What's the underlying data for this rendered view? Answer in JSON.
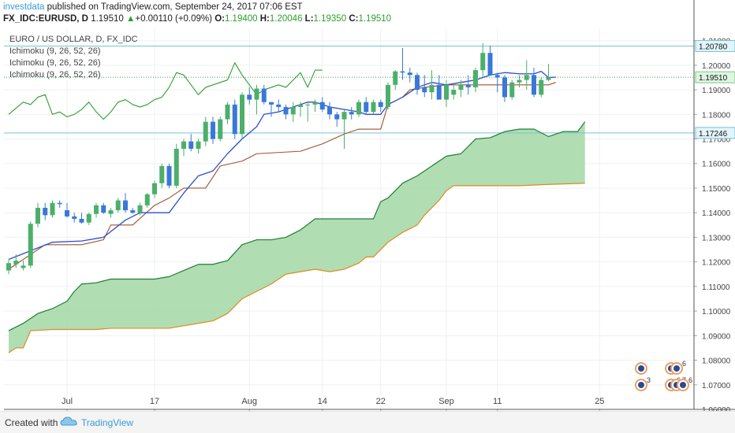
{
  "header": {
    "user": "investdata",
    "published": "published on TradingView.com, September 24, 2017 07:06 EST",
    "symbol": "FX_IDC:EURUSD, D",
    "price": "1.19510",
    "change_arrow": "▲",
    "change": "+0.00110 (+0.09%)",
    "o_label": "O:",
    "o_value": "1.19400",
    "h_label": "H:",
    "h_value": "1.20046",
    "l_label": "L:",
    "l_value": "1.19350",
    "c_label": "C:",
    "c_value": "1.19510"
  },
  "legend": {
    "title": "EURO / US DOLLAR, D, FX_IDC",
    "ind1": "Ichimoku (9, 26, 52, 26)",
    "ind2": "Ichimoku (9, 26, 52, 26)",
    "ind3": "Ichimoku (9, 26, 52, 26)"
  },
  "footer": {
    "created": "Created with",
    "brand": "TradingView"
  },
  "colors": {
    "up": "#4caf6a",
    "down": "#3a78d6",
    "tenkan": "#2a4fd0",
    "kijun": "#a0522d",
    "chikou": "#2ca02c",
    "span_a": "#1e7e34",
    "span_b": "#e08a1e",
    "cloud": "#a9d9ab",
    "hline": "#77c3d6",
    "badge": "#e8a06a"
  },
  "chart_data": {
    "type": "candlestick",
    "ylim": [
      1.06,
      1.215
    ],
    "y_ticks": [
      "1.06000",
      "1.07000",
      "1.08000",
      "1.09000",
      "1.10000",
      "1.11000",
      "1.12000",
      "1.13000",
      "1.14000",
      "1.15000",
      "1.16000",
      "1.17000",
      "1.18000",
      "1.19000",
      "1.20000",
      "1.21000"
    ],
    "x_ticks": [
      {
        "label": "Jul",
        "idx": 8
      },
      {
        "label": "17",
        "idx": 20
      },
      {
        "label": "Aug",
        "idx": 33
      },
      {
        "label": "14",
        "idx": 43
      },
      {
        "label": "22",
        "idx": 51
      },
      {
        "label": "Sep",
        "idx": 60
      },
      {
        "label": "11",
        "idx": 67
      },
      {
        "label": "25",
        "idx": 81
      }
    ],
    "price_labels": [
      {
        "value": 1.2078,
        "text": "1.20780"
      },
      {
        "value": 1.1951,
        "text": "1.19510"
      },
      {
        "value": 1.17246,
        "text": "1.17246"
      }
    ],
    "candles": [
      {
        "o": 1.1165,
        "h": 1.121,
        "l": 1.115,
        "c": 1.1195
      },
      {
        "o": 1.119,
        "h": 1.123,
        "l": 1.1175,
        "c": 1.1205
      },
      {
        "o": 1.1175,
        "h": 1.1205,
        "l": 1.1165,
        "c": 1.1185
      },
      {
        "o": 1.1185,
        "h": 1.1365,
        "l": 1.1175,
        "c": 1.1355
      },
      {
        "o": 1.1355,
        "h": 1.144,
        "l": 1.134,
        "c": 1.142
      },
      {
        "o": 1.142,
        "h": 1.144,
        "l": 1.137,
        "c": 1.139
      },
      {
        "o": 1.139,
        "h": 1.145,
        "l": 1.138,
        "c": 1.144
      },
      {
        "o": 1.144,
        "h": 1.145,
        "l": 1.142,
        "c": 1.1435
      },
      {
        "o": 1.141,
        "h": 1.144,
        "l": 1.138,
        "c": 1.1385
      },
      {
        "o": 1.1385,
        "h": 1.14,
        "l": 1.136,
        "c": 1.1375
      },
      {
        "o": 1.1375,
        "h": 1.14,
        "l": 1.1355,
        "c": 1.136
      },
      {
        "o": 1.136,
        "h": 1.14,
        "l": 1.135,
        "c": 1.1395
      },
      {
        "o": 1.1395,
        "h": 1.144,
        "l": 1.138,
        "c": 1.143
      },
      {
        "o": 1.143,
        "h": 1.144,
        "l": 1.1395,
        "c": 1.14
      },
      {
        "o": 1.1395,
        "h": 1.142,
        "l": 1.138,
        "c": 1.141
      },
      {
        "o": 1.141,
        "h": 1.146,
        "l": 1.14,
        "c": 1.145
      },
      {
        "o": 1.145,
        "h": 1.148,
        "l": 1.14,
        "c": 1.141
      },
      {
        "o": 1.141,
        "h": 1.142,
        "l": 1.1395,
        "c": 1.14
      },
      {
        "o": 1.14,
        "h": 1.144,
        "l": 1.139,
        "c": 1.143
      },
      {
        "o": 1.143,
        "h": 1.148,
        "l": 1.142,
        "c": 1.1475
      },
      {
        "o": 1.1475,
        "h": 1.153,
        "l": 1.146,
        "c": 1.152
      },
      {
        "o": 1.152,
        "h": 1.16,
        "l": 1.15,
        "c": 1.159
      },
      {
        "o": 1.159,
        "h": 1.16,
        "l": 1.15,
        "c": 1.151
      },
      {
        "o": 1.151,
        "h": 1.168,
        "l": 1.15,
        "c": 1.166
      },
      {
        "o": 1.166,
        "h": 1.17,
        "l": 1.163,
        "c": 1.169
      },
      {
        "o": 1.169,
        "h": 1.172,
        "l": 1.165,
        "c": 1.166
      },
      {
        "o": 1.166,
        "h": 1.17,
        "l": 1.164,
        "c": 1.169
      },
      {
        "o": 1.169,
        "h": 1.179,
        "l": 1.167,
        "c": 1.177
      },
      {
        "o": 1.177,
        "h": 1.179,
        "l": 1.168,
        "c": 1.17
      },
      {
        "o": 1.17,
        "h": 1.179,
        "l": 1.169,
        "c": 1.178
      },
      {
        "o": 1.178,
        "h": 1.185,
        "l": 1.176,
        "c": 1.184
      },
      {
        "o": 1.184,
        "h": 1.186,
        "l": 1.17,
        "c": 1.172
      },
      {
        "o": 1.172,
        "h": 1.189,
        "l": 1.17,
        "c": 1.188
      },
      {
        "o": 1.188,
        "h": 1.191,
        "l": 1.184,
        "c": 1.186
      },
      {
        "o": 1.186,
        "h": 1.192,
        "l": 1.18,
        "c": 1.1905
      },
      {
        "o": 1.1905,
        "h": 1.192,
        "l": 1.184,
        "c": 1.185
      },
      {
        "o": 1.185,
        "h": 1.185,
        "l": 1.179,
        "c": 1.184
      },
      {
        "o": 1.184,
        "h": 1.186,
        "l": 1.181,
        "c": 1.183
      },
      {
        "o": 1.183,
        "h": 1.184,
        "l": 1.178,
        "c": 1.18
      },
      {
        "o": 1.18,
        "h": 1.185,
        "l": 1.177,
        "c": 1.183
      },
      {
        "o": 1.183,
        "h": 1.185,
        "l": 1.179,
        "c": 1.184
      },
      {
        "o": 1.184,
        "h": 1.185,
        "l": 1.177,
        "c": 1.184
      },
      {
        "o": 1.184,
        "h": 1.186,
        "l": 1.181,
        "c": 1.185
      },
      {
        "o": 1.185,
        "h": 1.187,
        "l": 1.181,
        "c": 1.182
      },
      {
        "o": 1.183,
        "h": 1.185,
        "l": 1.178,
        "c": 1.18
      },
      {
        "o": 1.18,
        "h": 1.181,
        "l": 1.175,
        "c": 1.178
      },
      {
        "o": 1.178,
        "h": 1.182,
        "l": 1.166,
        "c": 1.181
      },
      {
        "o": 1.181,
        "h": 1.183,
        "l": 1.178,
        "c": 1.18
      },
      {
        "o": 1.18,
        "h": 1.186,
        "l": 1.179,
        "c": 1.185
      },
      {
        "o": 1.185,
        "h": 1.187,
        "l": 1.18,
        "c": 1.181
      },
      {
        "o": 1.181,
        "h": 1.186,
        "l": 1.18,
        "c": 1.185
      },
      {
        "o": 1.185,
        "h": 1.186,
        "l": 1.181,
        "c": 1.183
      },
      {
        "o": 1.183,
        "h": 1.193,
        "l": 1.182,
        "c": 1.192
      },
      {
        "o": 1.192,
        "h": 1.198,
        "l": 1.19,
        "c": 1.1975
      },
      {
        "o": 1.1975,
        "h": 1.207,
        "l": 1.194,
        "c": 1.197
      },
      {
        "o": 1.197,
        "h": 1.199,
        "l": 1.193,
        "c": 1.196
      },
      {
        "o": 1.196,
        "h": 1.197,
        "l": 1.188,
        "c": 1.19
      },
      {
        "o": 1.191,
        "h": 1.196,
        "l": 1.187,
        "c": 1.189
      },
      {
        "o": 1.189,
        "h": 1.198,
        "l": 1.186,
        "c": 1.192
      },
      {
        "o": 1.192,
        "h": 1.196,
        "l": 1.186,
        "c": 1.186
      },
      {
        "o": 1.186,
        "h": 1.194,
        "l": 1.183,
        "c": 1.192
      },
      {
        "o": 1.188,
        "h": 1.192,
        "l": 1.186,
        "c": 1.19
      },
      {
        "o": 1.19,
        "h": 1.194,
        "l": 1.187,
        "c": 1.192
      },
      {
        "o": 1.192,
        "h": 1.196,
        "l": 1.188,
        "c": 1.191
      },
      {
        "o": 1.191,
        "h": 1.199,
        "l": 1.189,
        "c": 1.198
      },
      {
        "o": 1.198,
        "h": 1.209,
        "l": 1.195,
        "c": 1.205
      },
      {
        "o": 1.205,
        "h": 1.208,
        "l": 1.196,
        "c": 1.196
      },
      {
        "o": 1.196,
        "h": 1.197,
        "l": 1.189,
        "c": 1.195
      },
      {
        "o": 1.195,
        "h": 1.196,
        "l": 1.185,
        "c": 1.187
      },
      {
        "o": 1.187,
        "h": 1.194,
        "l": 1.186,
        "c": 1.193
      },
      {
        "o": 1.193,
        "h": 1.196,
        "l": 1.191,
        "c": 1.194
      },
      {
        "o": 1.194,
        "h": 1.202,
        "l": 1.19,
        "c": 1.196
      },
      {
        "o": 1.196,
        "h": 1.199,
        "l": 1.187,
        "c": 1.188
      },
      {
        "o": 1.188,
        "h": 1.195,
        "l": 1.187,
        "c": 1.194
      },
      {
        "o": 1.194,
        "h": 1.2005,
        "l": 1.1935,
        "c": 1.1951
      }
    ],
    "tenkan": [
      [
        0,
        1.121
      ],
      [
        6,
        1.128
      ],
      [
        10,
        1.1285
      ],
      [
        13,
        1.13
      ],
      [
        16,
        1.137
      ],
      [
        18,
        1.14
      ],
      [
        22,
        1.14
      ],
      [
        24,
        1.148
      ],
      [
        26,
        1.155
      ],
      [
        28,
        1.157
      ],
      [
        30,
        1.164
      ],
      [
        32,
        1.17
      ],
      [
        34,
        1.175
      ],
      [
        35,
        1.18
      ],
      [
        37,
        1.181
      ],
      [
        39,
        1.183
      ],
      [
        41,
        1.185
      ],
      [
        42,
        1.185
      ],
      [
        44,
        1.183
      ],
      [
        46,
        1.182
      ],
      [
        48,
        1.181
      ],
      [
        49,
        1.18
      ],
      [
        51,
        1.18
      ],
      [
        52,
        1.184
      ],
      [
        54,
        1.187
      ],
      [
        56,
        1.191
      ],
      [
        58,
        1.193
      ],
      [
        60,
        1.192
      ],
      [
        62,
        1.193
      ],
      [
        64,
        1.194
      ],
      [
        66,
        1.196
      ],
      [
        68,
        1.197
      ],
      [
        70,
        1.1965
      ],
      [
        72,
        1.1965
      ],
      [
        73,
        1.1975
      ],
      [
        74,
        1.195
      ],
      [
        75,
        1.1951
      ]
    ],
    "kijun": [
      [
        0,
        1.117
      ],
      [
        5,
        1.127
      ],
      [
        10,
        1.127
      ],
      [
        13,
        1.129
      ],
      [
        14,
        1.135
      ],
      [
        17,
        1.135
      ],
      [
        20,
        1.143
      ],
      [
        22,
        1.146
      ],
      [
        24,
        1.15
      ],
      [
        27,
        1.15
      ],
      [
        29,
        1.159
      ],
      [
        32,
        1.161
      ],
      [
        34,
        1.164
      ],
      [
        40,
        1.165
      ],
      [
        43,
        1.168
      ],
      [
        46,
        1.172
      ],
      [
        48,
        1.174
      ],
      [
        51,
        1.174
      ],
      [
        52,
        1.184
      ],
      [
        54,
        1.187
      ],
      [
        55,
        1.19
      ],
      [
        57,
        1.191
      ],
      [
        60,
        1.192
      ],
      [
        70,
        1.192
      ],
      [
        74,
        1.192
      ],
      [
        75,
        1.193
      ]
    ],
    "chikou": [
      [
        0,
        1.18
      ],
      [
        2,
        1.185
      ],
      [
        3,
        1.184
      ],
      [
        4,
        1.187
      ],
      [
        5,
        1.188
      ],
      [
        6,
        1.18
      ],
      [
        7,
        1.181
      ],
      [
        8,
        1.179
      ],
      [
        9,
        1.18
      ],
      [
        10,
        1.182
      ],
      [
        11,
        1.185
      ],
      [
        12,
        1.181
      ],
      [
        13,
        1.178
      ],
      [
        14,
        1.181
      ],
      [
        15,
        1.185
      ],
      [
        16,
        1.186
      ],
      [
        17,
        1.184
      ],
      [
        18,
        1.183
      ],
      [
        19,
        1.184
      ],
      [
        20,
        1.186
      ],
      [
        21,
        1.187
      ],
      [
        22,
        1.191
      ],
      [
        23,
        1.197
      ],
      [
        24,
        1.196
      ],
      [
        25,
        1.192
      ],
      [
        26,
        1.188
      ],
      [
        27,
        1.191
      ],
      [
        28,
        1.192
      ],
      [
        29,
        1.193
      ],
      [
        30,
        1.194
      ],
      [
        31,
        1.201
      ],
      [
        32,
        1.196
      ],
      [
        33,
        1.192
      ],
      [
        34,
        1.188
      ],
      [
        35,
        1.19
      ],
      [
        36,
        1.191
      ],
      [
        37,
        1.192
      ],
      [
        38,
        1.191
      ],
      [
        39,
        1.194
      ],
      [
        40,
        1.197
      ],
      [
        41,
        1.191
      ],
      [
        42,
        1.198
      ],
      [
        43,
        1.198
      ]
    ],
    "span_a": [
      [
        0,
        1.092
      ],
      [
        2,
        1.095
      ],
      [
        4,
        1.099
      ],
      [
        6,
        1.101
      ],
      [
        8,
        1.104
      ],
      [
        9,
        1.108
      ],
      [
        10,
        1.111
      ],
      [
        12,
        1.1115
      ],
      [
        14,
        1.113
      ],
      [
        20,
        1.113
      ],
      [
        22,
        1.114
      ],
      [
        24,
        1.1165
      ],
      [
        26,
        1.119
      ],
      [
        28,
        1.119
      ],
      [
        30,
        1.1205
      ],
      [
        32,
        1.127
      ],
      [
        34,
        1.129
      ],
      [
        36,
        1.129
      ],
      [
        38,
        1.13
      ],
      [
        40,
        1.133
      ],
      [
        42,
        1.1375
      ],
      [
        44,
        1.1375
      ],
      [
        50,
        1.1375
      ],
      [
        51,
        1.1445
      ],
      [
        52,
        1.146
      ],
      [
        54,
        1.152
      ],
      [
        56,
        1.155
      ],
      [
        58,
        1.159
      ],
      [
        60,
        1.163
      ],
      [
        62,
        1.164
      ],
      [
        64,
        1.17
      ],
      [
        66,
        1.1705
      ],
      [
        68,
        1.173
      ],
      [
        70,
        1.174
      ],
      [
        72,
        1.174
      ],
      [
        74,
        1.171
      ],
      [
        76,
        1.173
      ],
      [
        78,
        1.173
      ],
      [
        79,
        1.177
      ]
    ],
    "span_b": [
      [
        0,
        1.083
      ],
      [
        1,
        1.085
      ],
      [
        2,
        1.085
      ],
      [
        3,
        1.092
      ],
      [
        6,
        1.0925
      ],
      [
        12,
        1.0925
      ],
      [
        14,
        1.093
      ],
      [
        22,
        1.093
      ],
      [
        24,
        1.094
      ],
      [
        28,
        1.096
      ],
      [
        30,
        1.099
      ],
      [
        32,
        1.105
      ],
      [
        34,
        1.108
      ],
      [
        36,
        1.111
      ],
      [
        38,
        1.115
      ],
      [
        40,
        1.116
      ],
      [
        42,
        1.117
      ],
      [
        44,
        1.116
      ],
      [
        46,
        1.117
      ],
      [
        48,
        1.1195
      ],
      [
        49,
        1.122
      ],
      [
        50,
        1.122
      ],
      [
        52,
        1.128
      ],
      [
        54,
        1.132
      ],
      [
        56,
        1.135
      ],
      [
        57,
        1.139
      ],
      [
        59,
        1.145
      ],
      [
        60,
        1.149
      ],
      [
        61,
        1.151
      ],
      [
        64,
        1.151
      ],
      [
        70,
        1.151
      ],
      [
        74,
        1.1515
      ],
      [
        79,
        1.152
      ]
    ]
  }
}
